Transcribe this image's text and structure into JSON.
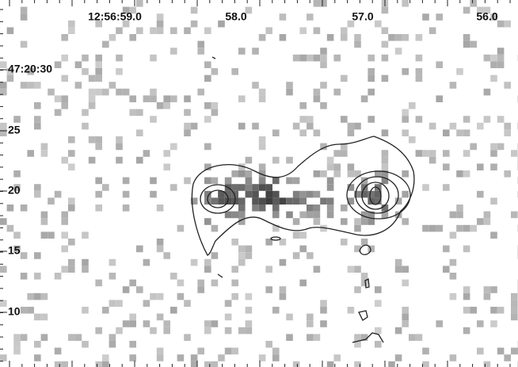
{
  "x_axis": {
    "labels": [
      "12:56:59.0",
      "58.0",
      "57.0",
      "56.0"
    ]
  },
  "y_axis": {
    "labels": [
      "47:20:30",
      "25",
      "20",
      "15",
      "10"
    ]
  }
}
